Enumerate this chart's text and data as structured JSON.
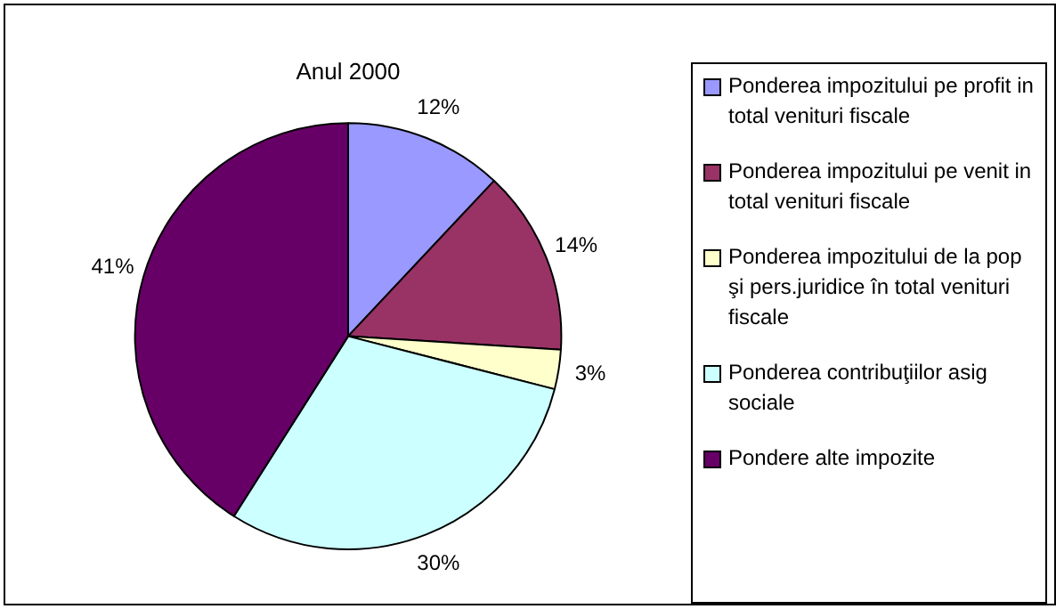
{
  "chart_data": {
    "type": "pie",
    "title": "Anul 2000",
    "categories": [
      "Ponderea impozitului pe profit in total venituri fiscale",
      "Ponderea impozitului pe venit in total venituri fiscale",
      "Ponderea impozitului de  la pop şi pers.juridice în total venituri fiscale",
      "Ponderea contribuţiilor asig sociale",
      "Pondere alte impozite"
    ],
    "values": [
      12,
      14,
      3,
      30,
      41
    ],
    "colors": [
      "#9999ff",
      "#993366",
      "#ffffcc",
      "#ccffff",
      "#660066"
    ],
    "value_labels": [
      "12%",
      "14%",
      "3%",
      "30%",
      "41%"
    ],
    "legend": "right"
  }
}
